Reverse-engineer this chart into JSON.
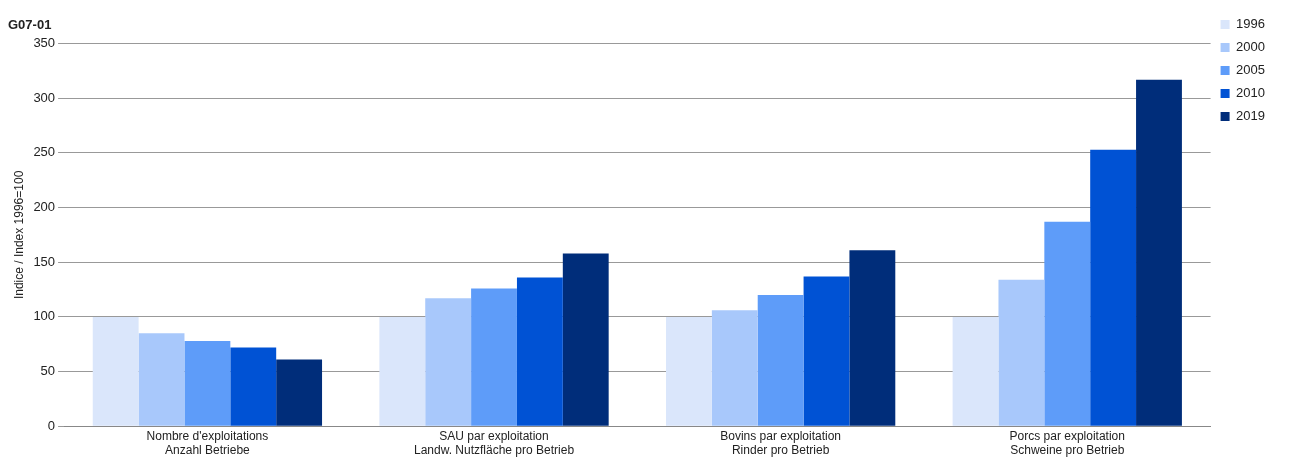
{
  "chart_data": {
    "type": "bar",
    "title": "G07-01",
    "ylabel": "Indice / Index 1996=100",
    "categories": [
      "Nombre d'exploitations\nAnzahl Betriebe",
      "SAU par exploitation\nLandw. Nutzfläche pro Betrieb",
      "Bovins par exploitation\nRinder pro Betrieb",
      "Porcs par exploitation\nSchweine pro Betrieb"
    ],
    "series": [
      {
        "name": "1996",
        "color": "#dae6fb",
        "values": [
          100,
          100,
          100,
          100
        ]
      },
      {
        "name": "2000",
        "color": "#a8c8fb",
        "values": [
          85,
          117,
          106,
          134
        ]
      },
      {
        "name": "2005",
        "color": "#5e9cf9",
        "values": [
          78,
          126,
          120,
          187
        ]
      },
      {
        "name": "2010",
        "color": "#0052d4",
        "values": [
          72,
          136,
          137,
          253
        ]
      },
      {
        "name": "2019",
        "color": "#002d7a",
        "values": [
          61,
          158,
          161,
          317
        ]
      }
    ],
    "ylim": [
      0,
      350
    ],
    "yticks": [
      0,
      50,
      100,
      150,
      200,
      250,
      300,
      350
    ],
    "grid": "y",
    "legend": "top right"
  }
}
